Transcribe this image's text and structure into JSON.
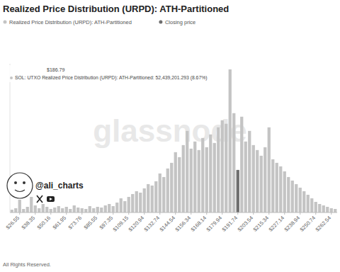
{
  "chart_data": {
    "type": "bar",
    "title": "Realized Price Distribution (URPD): ATH-Partitioned",
    "categories": [
      null,
      null,
      "$26.55",
      null,
      null,
      null,
      "$38.35",
      null,
      null,
      null,
      "$50.16",
      null,
      null,
      null,
      "$61.95",
      null,
      null,
      null,
      "$73.76",
      null,
      null,
      null,
      "$85.55",
      null,
      null,
      null,
      "$97.35",
      null,
      null,
      null,
      "$109.15",
      null,
      null,
      null,
      "$120.94",
      null,
      null,
      null,
      "$132.74",
      null,
      null,
      null,
      "$144.54",
      null,
      null,
      null,
      "$156.34",
      null,
      null,
      null,
      "$168.14",
      null,
      null,
      null,
      "$179.94",
      null,
      null,
      null,
      "$191.74",
      null,
      null,
      null,
      "$203.54",
      null,
      null,
      null,
      "$215.34",
      null,
      null,
      null,
      "$227.14",
      null,
      null,
      null,
      "$238.94",
      null,
      null,
      null,
      "$250.74",
      null,
      null,
      null,
      "$262.54",
      null
    ],
    "series": [
      {
        "name": "Realized Price Distribution (URPD): ATH-Partitioned",
        "color": "#c4c4c4",
        "values": [
          1040000,
          1560000,
          4680000,
          1300000,
          2080000,
          5720000,
          2600000,
          1560000,
          3120000,
          2080000,
          1300000,
          1820000,
          2340000,
          1560000,
          2080000,
          1300000,
          2600000,
          1820000,
          1560000,
          1300000,
          2340000,
          1560000,
          2080000,
          1820000,
          2600000,
          3120000,
          2340000,
          3640000,
          5200000,
          4160000,
          5720000,
          6760000,
          7800000,
          7280000,
          8840000,
          10400000,
          9880000,
          11440000,
          14300000,
          13000000,
          16120000,
          18200000,
          22100000,
          20280000,
          24700000,
          29900000,
          23400000,
          26000000,
          22880000,
          27300000,
          23920000,
          28600000,
          25480000,
          31200000,
          33800000,
          32500000,
          52439201.293,
          36400000,
          null,
          35100000,
          26000000,
          29900000,
          24700000,
          22880000,
          20800000,
          23920000,
          31200000,
          19500000,
          18200000,
          16900000,
          15080000,
          13000000,
          11700000,
          10400000,
          9100000,
          7800000,
          6500000,
          5200000,
          3900000,
          3120000,
          2600000,
          2080000,
          1560000,
          1300000
        ]
      },
      {
        "name": "Closing price",
        "color": "#6e6e6e",
        "values": [
          null,
          null,
          null,
          null,
          null,
          null,
          null,
          null,
          null,
          null,
          null,
          null,
          null,
          null,
          null,
          null,
          null,
          null,
          null,
          null,
          null,
          null,
          null,
          null,
          null,
          null,
          null,
          null,
          null,
          null,
          null,
          null,
          null,
          null,
          null,
          null,
          null,
          null,
          null,
          null,
          null,
          null,
          null,
          null,
          null,
          null,
          null,
          null,
          null,
          null,
          null,
          null,
          null,
          null,
          null,
          null,
          null,
          null,
          15600000,
          null,
          null,
          null,
          null,
          null,
          null,
          null,
          null,
          null,
          null,
          null,
          null,
          null,
          null,
          null,
          null,
          null,
          null,
          null,
          null,
          null,
          null,
          null,
          null,
          null
        ]
      }
    ],
    "ylim": [
      0,
      54500000
    ],
    "tick_labels": "x",
    "grid": false,
    "legend": "top-left",
    "annotations": [
      "$186.79",
      "SOL: UTXO Realized Price Distribution (URPD): ATH-Partitioned: 52,439,201.293 (8.67%)",
      "glassnode",
      "@ali_charts",
      "All Rights Reserved."
    ]
  }
}
